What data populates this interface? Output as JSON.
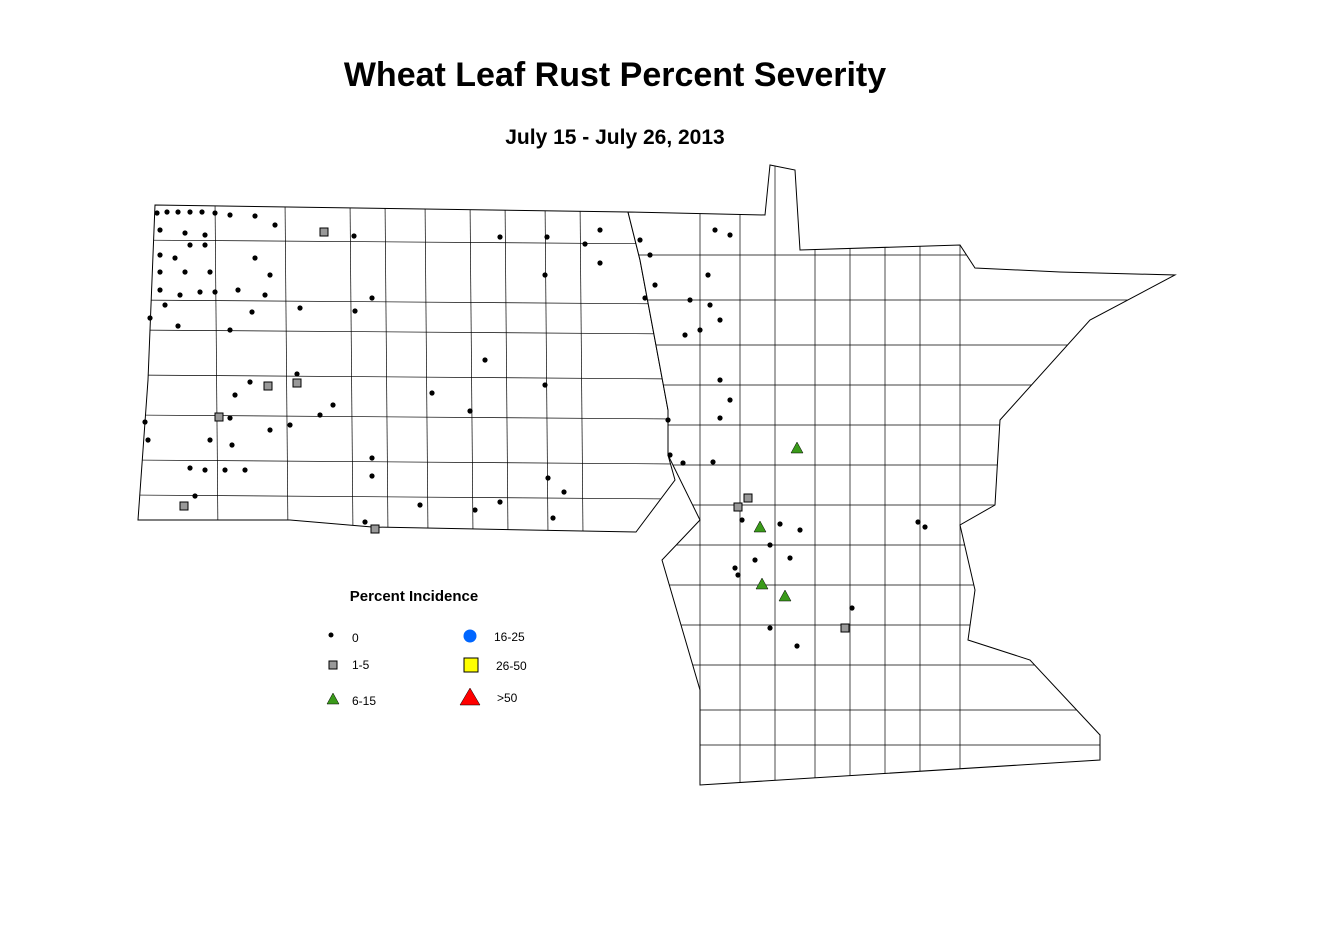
{
  "title": "Wheat Leaf Rust Percent Severity",
  "subtitle": "July 15 - July 26, 2013",
  "legend": {
    "title": "Percent Incidence",
    "items": [
      {
        "label": "0"
      },
      {
        "label": "1-5"
      },
      {
        "label": "6-15"
      },
      {
        "label": "16-25"
      },
      {
        "label": "26-50"
      },
      {
        "label": ">50"
      }
    ]
  }
}
